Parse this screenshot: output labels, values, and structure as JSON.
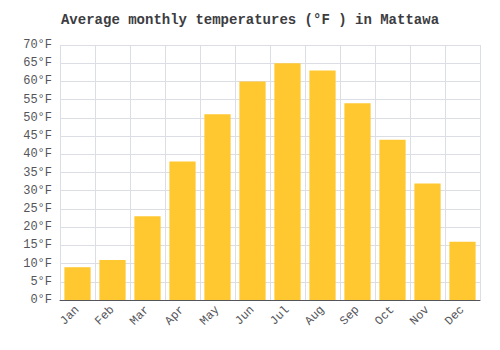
{
  "chart_data": {
    "type": "bar",
    "title": "Average monthly temperatures (°F ) in Mattawa",
    "categories": [
      "Jan",
      "Feb",
      "Mar",
      "Apr",
      "May",
      "Jun",
      "Jul",
      "Aug",
      "Sep",
      "Oct",
      "Nov",
      "Dec"
    ],
    "values": [
      9,
      11,
      23,
      38,
      51,
      60,
      65,
      63,
      54,
      44,
      32,
      16
    ],
    "color": "#FFC830",
    "ylim": [
      0,
      70
    ],
    "yticks": [
      {
        "value": 0,
        "label": "0°F"
      },
      {
        "value": 5,
        "label": "5°F"
      },
      {
        "value": 10,
        "label": "10°F"
      },
      {
        "value": 15,
        "label": "15°F"
      },
      {
        "value": 20,
        "label": "20°F"
      },
      {
        "value": 25,
        "label": "25°F"
      },
      {
        "value": 30,
        "label": "30°F"
      },
      {
        "value": 35,
        "label": "35°F"
      },
      {
        "value": 40,
        "label": "40°F"
      },
      {
        "value": 45,
        "label": "45°F"
      },
      {
        "value": 50,
        "label": "50°F"
      },
      {
        "value": 55,
        "label": "55°F"
      },
      {
        "value": 60,
        "label": "60°F"
      },
      {
        "value": 65,
        "label": "65°F"
      },
      {
        "value": 70,
        "label": "70°F"
      }
    ],
    "grid": true
  }
}
